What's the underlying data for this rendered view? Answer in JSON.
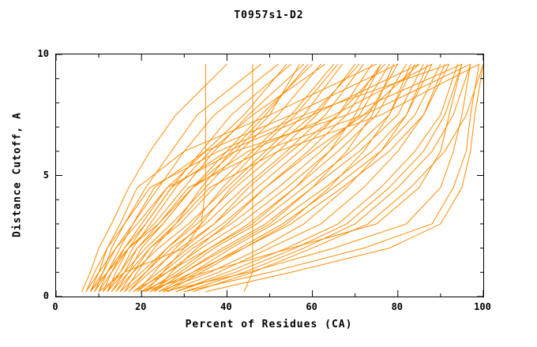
{
  "chart_data": {
    "type": "line",
    "title": "T0957s1-D2",
    "xlabel": "Percent of Residues (CA)",
    "ylabel": "Distance Cutoff, A",
    "xlim": [
      0,
      100
    ],
    "ylim": [
      0,
      10
    ],
    "x_ticks": [
      0,
      20,
      40,
      60,
      80,
      100
    ],
    "x_minor_ticks": [
      10,
      30,
      50,
      70,
      90
    ],
    "y_ticks": [
      0,
      5,
      10
    ],
    "y_minor_ticks": [
      1,
      2,
      3,
      4,
      6,
      7,
      8,
      9
    ],
    "grid": false,
    "legend_position": "none",
    "line_color": "#ff8c00",
    "axis_color": "#000000",
    "y_levels": [
      0.2,
      1,
      2,
      3,
      4.5,
      6,
      7.5,
      9.6
    ],
    "curves_format": "each curve lists x (percent of residues) at the shared y_levels (distance cutoff)",
    "curves": [
      [
        7,
        9,
        12,
        16,
        21,
        27,
        33,
        48
      ],
      [
        8,
        11,
        14,
        18,
        24,
        30,
        37,
        52
      ],
      [
        9,
        12,
        16,
        21,
        27,
        34,
        41,
        55
      ],
      [
        10,
        13,
        17,
        23,
        30,
        37,
        45,
        58
      ],
      [
        11,
        15,
        19,
        25,
        32,
        40,
        48,
        60
      ],
      [
        12,
        16,
        21,
        27,
        35,
        43,
        52,
        62
      ],
      [
        13,
        17,
        22,
        29,
        37,
        46,
        55,
        65
      ],
      [
        14,
        18,
        24,
        31,
        40,
        49,
        58,
        67
      ],
      [
        15,
        20,
        26,
        33,
        42,
        52,
        61,
        70
      ],
      [
        16,
        21,
        27,
        35,
        44,
        54,
        63,
        72
      ],
      [
        17,
        22,
        29,
        37,
        47,
        57,
        66,
        74
      ],
      [
        18,
        24,
        31,
        39,
        49,
        59,
        68,
        76
      ],
      [
        19,
        25,
        32,
        41,
        52,
        62,
        71,
        78
      ],
      [
        20,
        26,
        34,
        43,
        54,
        64,
        73,
        80
      ],
      [
        21,
        28,
        36,
        45,
        56,
        66,
        75,
        82
      ],
      [
        22,
        29,
        37,
        47,
        58,
        69,
        78,
        84
      ],
      [
        23,
        30,
        39,
        49,
        60,
        71,
        80,
        86
      ],
      [
        24,
        32,
        41,
        51,
        63,
        74,
        82,
        88
      ],
      [
        25,
        33,
        43,
        53,
        65,
        76,
        84,
        90
      ],
      [
        26,
        34,
        44,
        55,
        67,
        78,
        86,
        92
      ],
      [
        8,
        10,
        12,
        15,
        19,
        30,
        50,
        75
      ],
      [
        10,
        12,
        15,
        18,
        23,
        35,
        55,
        80
      ],
      [
        12,
        14,
        17,
        21,
        27,
        40,
        60,
        85
      ],
      [
        14,
        17,
        20,
        25,
        32,
        45,
        65,
        88
      ],
      [
        9,
        11,
        13,
        16,
        22,
        38,
        58,
        92
      ],
      [
        11,
        13,
        16,
        20,
        26,
        42,
        68,
        95
      ],
      [
        13,
        16,
        19,
        24,
        31,
        48,
        72,
        97
      ],
      [
        15,
        18,
        22,
        28,
        36,
        52,
        76,
        99
      ],
      [
        18,
        26,
        36,
        46,
        56,
        64,
        70,
        76
      ],
      [
        20,
        30,
        40,
        50,
        60,
        68,
        74,
        79
      ],
      [
        22,
        32,
        44,
        54,
        64,
        72,
        78,
        83
      ],
      [
        24,
        36,
        48,
        58,
        68,
        76,
        82,
        87
      ],
      [
        26,
        38,
        50,
        62,
        72,
        80,
        86,
        91
      ],
      [
        28,
        40,
        54,
        66,
        76,
        84,
        90,
        94
      ],
      [
        30,
        44,
        58,
        70,
        80,
        88,
        93,
        97
      ],
      [
        32,
        46,
        60,
        73,
        83,
        91,
        96,
        100
      ],
      [
        20,
        35,
        55,
        75,
        85,
        90,
        92,
        95
      ],
      [
        25,
        45,
        65,
        82,
        90,
        93,
        95,
        97
      ],
      [
        30,
        50,
        72,
        88,
        93,
        96,
        97,
        99
      ],
      [
        35,
        55,
        78,
        90,
        95,
        97,
        98,
        100
      ],
      [
        10,
        16,
        30,
        34,
        35,
        35,
        35,
        35
      ],
      [
        44,
        46,
        46,
        46,
        46,
        46,
        46,
        46
      ],
      [
        7,
        10,
        14,
        19,
        26,
        35,
        44,
        54
      ],
      [
        8,
        12,
        17,
        24,
        32,
        42,
        50,
        57
      ],
      [
        6,
        8,
        10,
        13,
        17,
        22,
        28,
        40
      ],
      [
        16,
        19,
        23,
        28,
        34,
        41,
        49,
        59
      ],
      [
        17,
        21,
        26,
        32,
        39,
        47,
        56,
        66
      ],
      [
        19,
        23,
        28,
        34,
        41,
        50,
        60,
        71
      ],
      [
        21,
        25,
        30,
        37,
        45,
        55,
        66,
        77
      ],
      [
        23,
        27,
        33,
        40,
        49,
        60,
        72,
        85
      ],
      [
        12,
        15,
        18,
        22,
        28,
        36,
        46,
        63
      ],
      [
        28,
        42,
        56,
        68,
        78,
        86,
        91,
        95
      ]
    ]
  }
}
